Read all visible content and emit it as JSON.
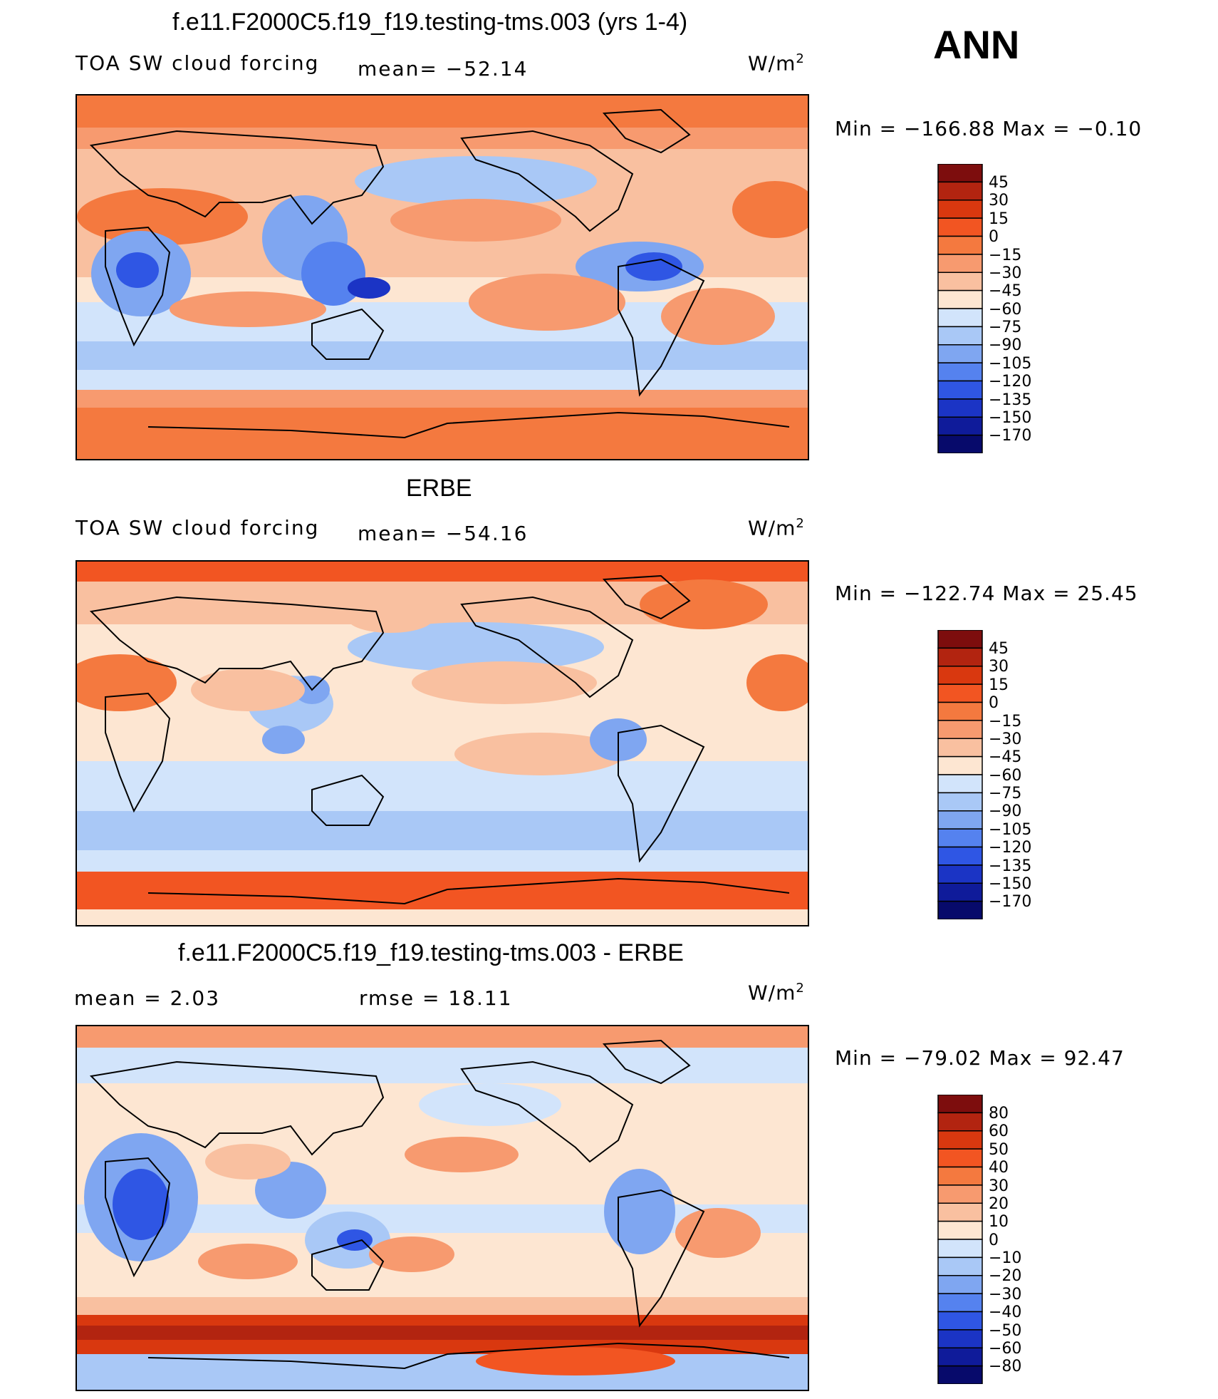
{
  "season": "ANN",
  "panels": [
    {
      "title": "f.e11.F2000C5.f19_f19.testing-tms.003 (yrs 1-4)",
      "variable": "TOA SW cloud forcing",
      "stat": "mean=  −52.14",
      "stat2": "",
      "units": "W/m",
      "units_exp": "2",
      "minmax": "Min  =  −166.88  Max  =    −0.10",
      "colorbar": {
        "labels": [
          "45",
          "30",
          "15",
          "0",
          "−15",
          "−30",
          "−45",
          "−60",
          "−75",
          "−90",
          "−105",
          "−120",
          "−135",
          "−150",
          "−170"
        ],
        "colors": [
          "#7d0d0d",
          "#b22410",
          "#d9380f",
          "#f25522",
          "#f4793f",
          "#f79a6f",
          "#f9c0a0",
          "#fde6d2",
          "#d2e4fb",
          "#a9c8f6",
          "#7fa6f1",
          "#5582ef",
          "#2f56e4",
          "#1b34c5",
          "#0f1b9a",
          "#070a6b"
        ]
      }
    },
    {
      "title": "ERBE",
      "variable": "TOA SW cloud forcing",
      "stat": "mean=  −54.16",
      "stat2": "",
      "units": "W/m",
      "units_exp": "2",
      "minmax": "Min  =  −122.74  Max  =    25.45",
      "colorbar": {
        "labels": [
          "45",
          "30",
          "15",
          "0",
          "−15",
          "−30",
          "−45",
          "−60",
          "−75",
          "−90",
          "−105",
          "−120",
          "−135",
          "−150",
          "−170"
        ],
        "colors": [
          "#7d0d0d",
          "#b22410",
          "#d9380f",
          "#f25522",
          "#f4793f",
          "#f79a6f",
          "#f9c0a0",
          "#fde6d2",
          "#d2e4fb",
          "#a9c8f6",
          "#7fa6f1",
          "#5582ef",
          "#2f56e4",
          "#1b34c5",
          "#0f1b9a",
          "#070a6b"
        ]
      }
    },
    {
      "title": "f.e11.F2000C5.f19_f19.testing-tms.003 - ERBE",
      "variable": "",
      "stat": "mean  =      2.03",
      "stat2": "rmse  =     18.11",
      "units": "W/m",
      "units_exp": "2",
      "minmax": "Min  =  −79.02  Max  =     92.47",
      "colorbar": {
        "labels": [
          "80",
          "60",
          "50",
          "40",
          "30",
          "20",
          "10",
          "0",
          "−10",
          "−20",
          "−30",
          "−40",
          "−50",
          "−60",
          "−80"
        ],
        "colors": [
          "#7d0d0d",
          "#b22410",
          "#d9380f",
          "#f25522",
          "#f4793f",
          "#f79a6f",
          "#f9c0a0",
          "#fde6d2",
          "#d2e4fb",
          "#a9c8f6",
          "#7fa6f1",
          "#5582ef",
          "#2f56e4",
          "#1b34c5",
          "#0f1b9a",
          "#070a6b"
        ]
      }
    }
  ]
}
